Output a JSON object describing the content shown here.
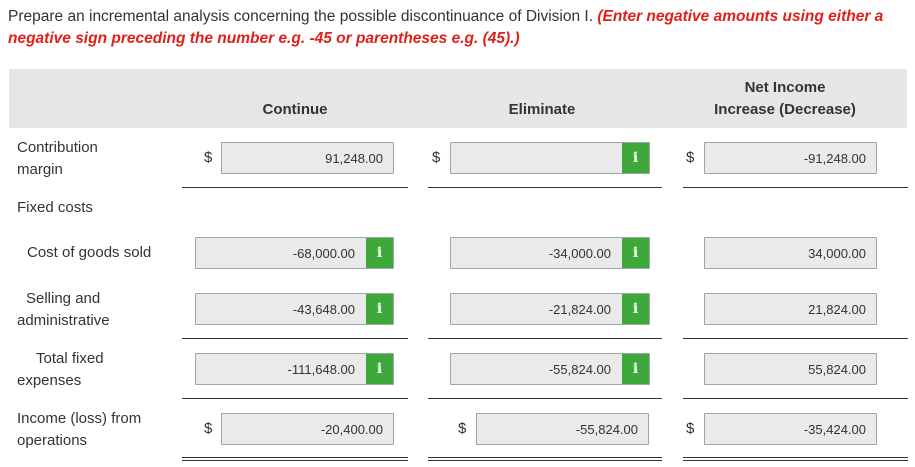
{
  "instructions": {
    "text": "Prepare an incremental analysis concerning the possible discontinuance of Division I. ",
    "warning": "(Enter negative amounts using either a negative sign preceding the number e.g. -45 or parentheses e.g. (45).)"
  },
  "columns": {
    "continue": "Continue",
    "eliminate": "Eliminate",
    "net_line1": "Net Income",
    "net_line2": "Increase (Decrease)"
  },
  "currency_symbol": "$",
  "info_symbol": "i",
  "rows": {
    "contribution": {
      "label1": "Contribution",
      "label2": "margin",
      "continue": "91,248.00",
      "eliminate": "",
      "net": "-91,248.00"
    },
    "fixed_costs": {
      "label": "Fixed costs"
    },
    "cogs": {
      "label": "Cost of goods sold",
      "continue": "-68,000.00",
      "eliminate": "-34,000.00",
      "net": "34,000.00"
    },
    "selling": {
      "label1": "Selling and",
      "label2": "administrative",
      "continue": "-43,648.00",
      "eliminate": "-21,824.00",
      "net": "21,824.00"
    },
    "total_fixed": {
      "label1": "Total fixed",
      "label2": "expenses",
      "continue": "-111,648.00",
      "eliminate": "-55,824.00",
      "net": "55,824.00"
    },
    "income": {
      "label1": "Income (loss) from",
      "label2": "operations",
      "continue": "-20,400.00",
      "eliminate": "-55,824.00",
      "net": "-35,424.00"
    }
  },
  "colors": {
    "warning_red": "#e0201a",
    "info_green": "#3ea83a",
    "header_gray": "#e6e6e6",
    "field_gray": "#eaeaea"
  }
}
